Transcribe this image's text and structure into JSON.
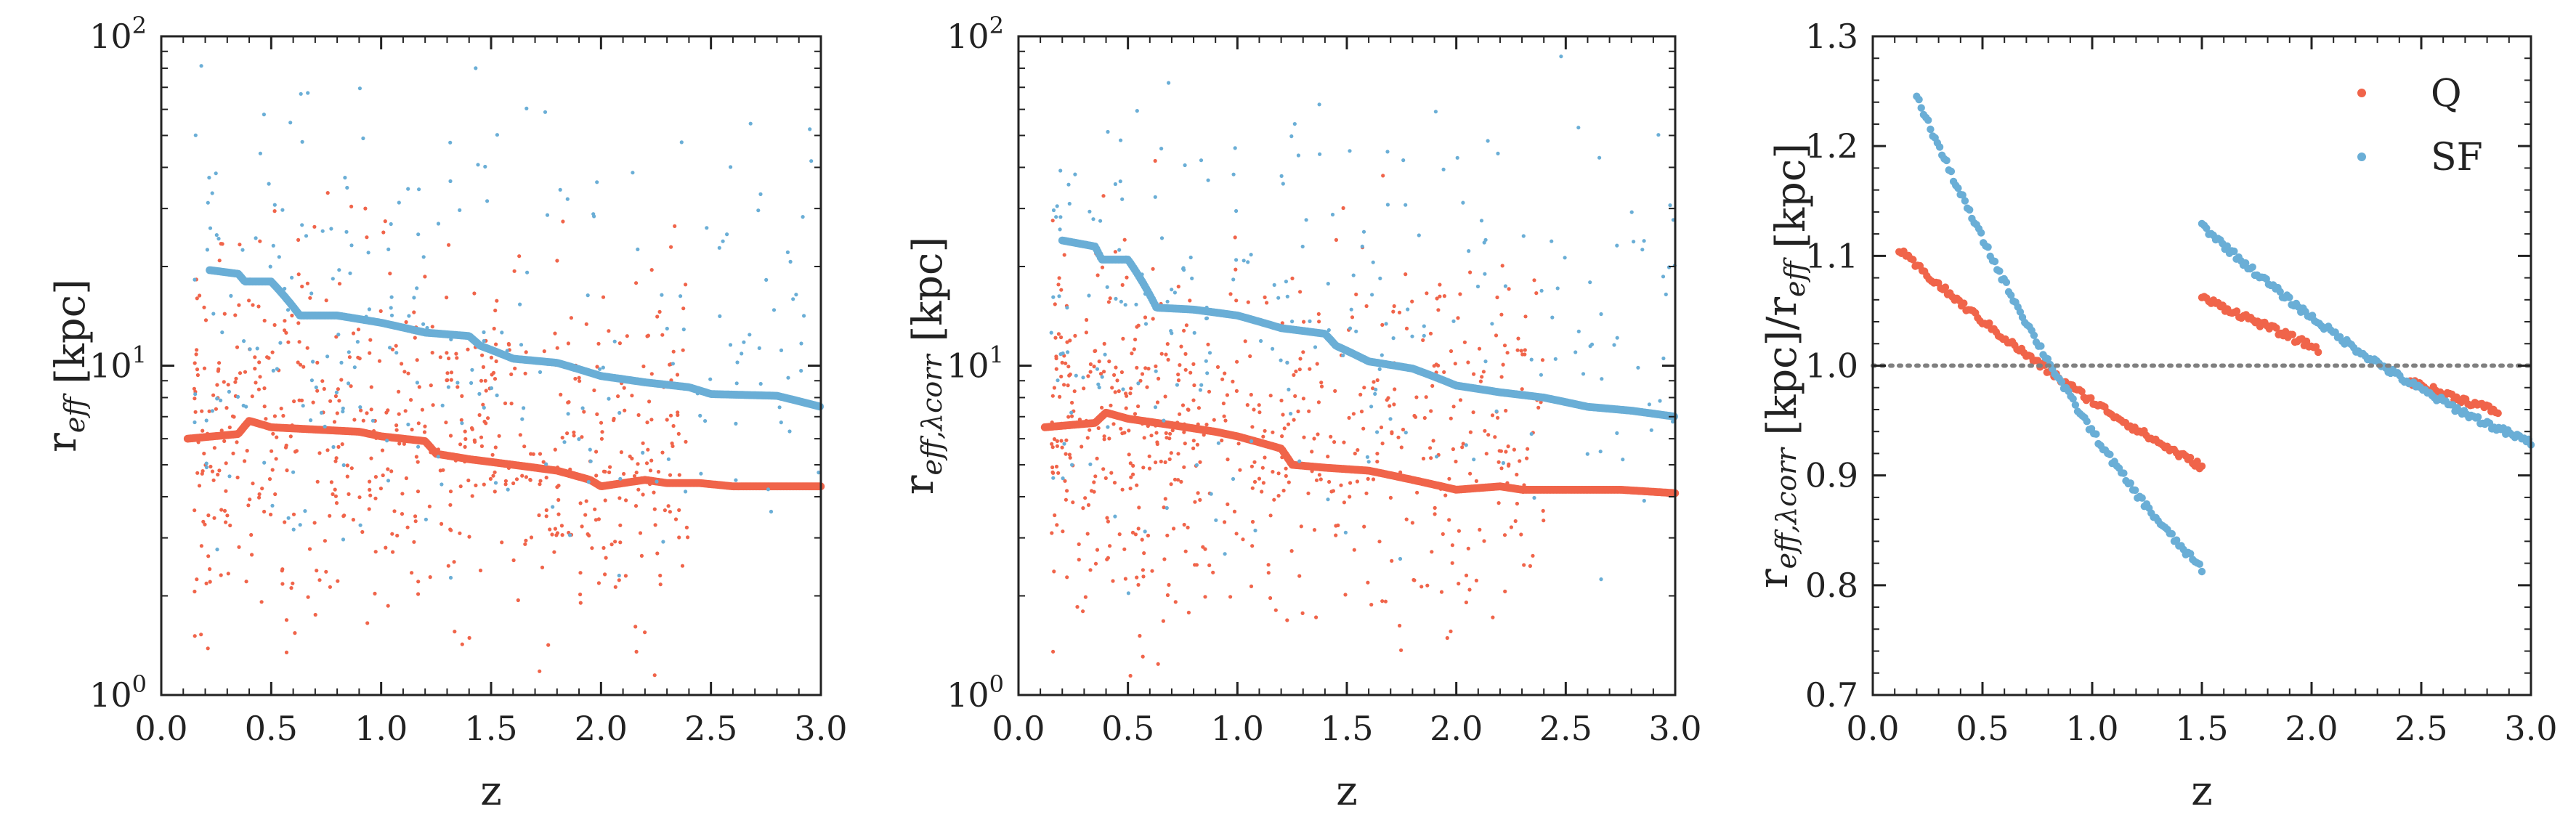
{
  "colors": {
    "Q": "#f0644a",
    "SF": "#6aaed6",
    "reference": "#808080",
    "axis": "#222222"
  },
  "chart_data": [
    {
      "type": "scatter",
      "title": "",
      "xlabel": "z",
      "ylabel_base": "r",
      "ylabel_sub": "eff",
      "ylabel_tail": " [kpc]",
      "xlim": [
        0,
        3
      ],
      "ylim": [
        1,
        100
      ],
      "yscale": "log",
      "xticks": [
        "0.0",
        "0.5",
        "1.0",
        "1.5",
        "2.0",
        "2.5",
        "3.0"
      ],
      "yticks": [
        {
          "base": "10",
          "exp": "0"
        },
        {
          "base": "10",
          "exp": "1"
        },
        {
          "base": "10",
          "exp": "2"
        }
      ],
      "series": [
        {
          "color_key": "Q",
          "trend": [
            [
              0.12,
              6.0
            ],
            [
              0.35,
              6.2
            ],
            [
              0.4,
              6.8
            ],
            [
              0.5,
              6.5
            ],
            [
              0.7,
              6.4
            ],
            [
              0.9,
              6.3
            ],
            [
              1.0,
              6.1
            ],
            [
              1.2,
              5.9
            ],
            [
              1.25,
              5.4
            ],
            [
              1.4,
              5.2
            ],
            [
              1.6,
              5.0
            ],
            [
              1.8,
              4.8
            ],
            [
              1.95,
              4.5
            ],
            [
              2.0,
              4.3
            ],
            [
              2.2,
              4.5
            ],
            [
              2.3,
              4.4
            ],
            [
              2.45,
              4.4
            ],
            [
              2.6,
              4.3
            ],
            [
              2.75,
              4.3
            ],
            [
              3.0,
              4.3
            ]
          ],
          "scatter_model": {
            "center": 6.0,
            "spread_dex": 0.28,
            "count": 620,
            "xmax": 2.4
          }
        },
        {
          "color_key": "SF",
          "trend": [
            [
              0.22,
              19.5
            ],
            [
              0.35,
              19.0
            ],
            [
              0.38,
              18.0
            ],
            [
              0.5,
              18.0
            ],
            [
              0.63,
              14.2
            ],
            [
              0.8,
              14.2
            ],
            [
              1.0,
              13.5
            ],
            [
              1.2,
              12.6
            ],
            [
              1.4,
              12.3
            ],
            [
              1.45,
              11.5
            ],
            [
              1.6,
              10.5
            ],
            [
              1.8,
              10.2
            ],
            [
              2.0,
              9.3
            ],
            [
              2.2,
              8.9
            ],
            [
              2.4,
              8.6
            ],
            [
              2.5,
              8.2
            ],
            [
              2.8,
              8.1
            ],
            [
              3.0,
              7.5
            ]
          ],
          "scatter_model": {
            "center": 13.0,
            "spread_dex": 0.32,
            "count": 240,
            "xmax": 3.0
          }
        }
      ]
    },
    {
      "type": "scatter",
      "title": "",
      "xlabel": "z",
      "ylabel_base": "r",
      "ylabel_sub": "eff,λcorr",
      "ylabel_tail": " [kpc]",
      "xlim": [
        0,
        3
      ],
      "ylim": [
        1,
        100
      ],
      "yscale": "log",
      "xticks": [
        "0.0",
        "0.5",
        "1.0",
        "1.5",
        "2.0",
        "2.5",
        "3.0"
      ],
      "yticks": [
        {
          "base": "10",
          "exp": "0"
        },
        {
          "base": "10",
          "exp": "1"
        },
        {
          "base": "10",
          "exp": "2"
        }
      ],
      "series": [
        {
          "color_key": "Q",
          "trend": [
            [
              0.12,
              6.5
            ],
            [
              0.35,
              6.7
            ],
            [
              0.4,
              7.2
            ],
            [
              0.5,
              6.9
            ],
            [
              0.7,
              6.6
            ],
            [
              0.9,
              6.3
            ],
            [
              1.0,
              6.1
            ],
            [
              1.2,
              5.6
            ],
            [
              1.25,
              5.0
            ],
            [
              1.4,
              4.9
            ],
            [
              1.6,
              4.8
            ],
            [
              1.8,
              4.5
            ],
            [
              2.0,
              4.2
            ],
            [
              2.2,
              4.3
            ],
            [
              2.3,
              4.2
            ],
            [
              2.5,
              4.2
            ],
            [
              2.75,
              4.2
            ],
            [
              3.0,
              4.1
            ]
          ],
          "scatter_model": {
            "center": 6.3,
            "spread_dex": 0.28,
            "count": 620,
            "xmax": 2.4
          }
        },
        {
          "color_key": "SF",
          "trend": [
            [
              0.2,
              24.0
            ],
            [
              0.35,
              23.0
            ],
            [
              0.38,
              21.0
            ],
            [
              0.5,
              21.0
            ],
            [
              0.63,
              15.0
            ],
            [
              0.8,
              14.8
            ],
            [
              1.0,
              14.2
            ],
            [
              1.2,
              13.0
            ],
            [
              1.4,
              12.5
            ],
            [
              1.45,
              11.5
            ],
            [
              1.6,
              10.3
            ],
            [
              1.8,
              9.8
            ],
            [
              2.0,
              8.7
            ],
            [
              2.2,
              8.3
            ],
            [
              2.4,
              8.0
            ],
            [
              2.6,
              7.5
            ],
            [
              2.8,
              7.3
            ],
            [
              3.0,
              7.0
            ]
          ],
          "scatter_model": {
            "center": 14.0,
            "spread_dex": 0.32,
            "count": 240,
            "xmax": 3.0
          }
        }
      ]
    },
    {
      "type": "scatter",
      "title": "",
      "xlabel": "z",
      "ylabel_parts": [
        {
          "base": "r",
          "sub": "eff,λcorr"
        },
        {
          "text": " [kpc]/"
        },
        {
          "base": "r",
          "sub": "eff"
        },
        {
          "text": " [kpc]"
        }
      ],
      "xlim": [
        0,
        3
      ],
      "ylim": [
        0.7,
        1.3
      ],
      "yscale": "linear",
      "xticks": [
        "0.0",
        "0.5",
        "1.0",
        "1.5",
        "2.0",
        "2.5",
        "3.0"
      ],
      "yticks": [
        "0.7",
        "0.8",
        "0.9",
        "1.0",
        "1.1",
        "1.2",
        "1.3"
      ],
      "reference_line": {
        "y": 1.0,
        "style": "dotted"
      },
      "legend": {
        "position": "top-right"
      },
      "series": [
        {
          "name": "Q",
          "color_key": "Q",
          "segments": [
            {
              "x0": 0.12,
              "y0": 1.105,
              "x1": 1.5,
              "y1": 0.908,
              "curve": -0.05
            },
            {
              "x0": 1.5,
              "y0": 1.062,
              "x1": 2.03,
              "y1": 1.015,
              "curve": 0.0
            },
            {
              "x0": 2.45,
              "y0": 0.985,
              "x1": 2.85,
              "y1": 0.958,
              "curve": 0.0
            }
          ]
        },
        {
          "name": "SF",
          "color_key": "SF",
          "segments": [
            {
              "x0": 0.2,
              "y0": 1.245,
              "x1": 1.5,
              "y1": 0.815,
              "curve": -0.17
            },
            {
              "x0": 1.5,
              "y0": 1.128,
              "x1": 3.0,
              "y1": 0.93,
              "curve": -0.08
            }
          ]
        }
      ]
    }
  ]
}
